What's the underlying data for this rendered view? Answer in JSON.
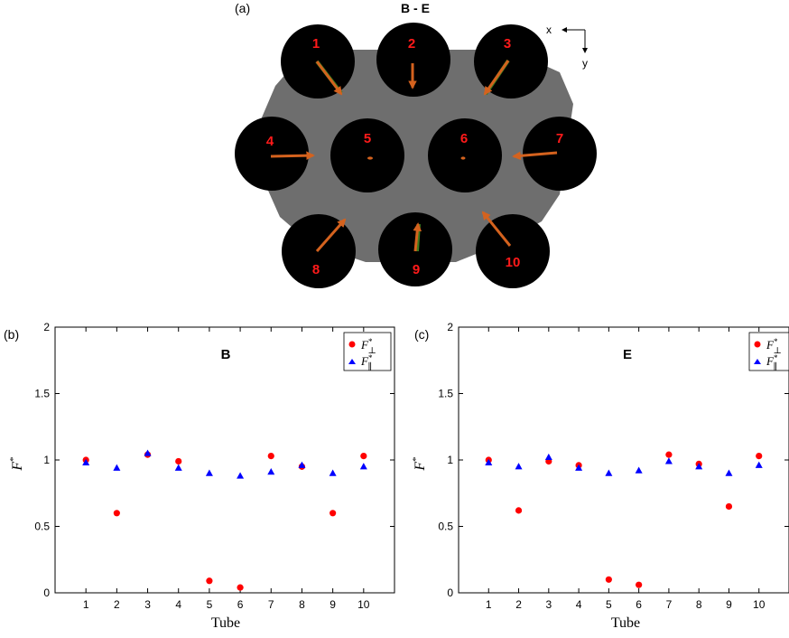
{
  "panel_a": {
    "label": "(a)",
    "title": "B - E",
    "axis_x": "x",
    "axis_y": "y",
    "tubes": [
      "1",
      "2",
      "3",
      "4",
      "5",
      "6",
      "7",
      "8",
      "9",
      "10"
    ],
    "colors": {
      "background": "#6e6e6e",
      "tube": "#000000",
      "number": "#ff1a1a",
      "arrow": "#d4621e",
      "arrow_alt": "#3d7a1e"
    }
  },
  "chart_data": [
    {
      "type": "scatter",
      "panel_label": "(b)",
      "title": "B",
      "xlabel": "Tube",
      "ylabel": "F*",
      "x": [
        1,
        2,
        3,
        4,
        5,
        6,
        7,
        8,
        9,
        10
      ],
      "xticks": [
        "1",
        "2",
        "3",
        "4",
        "5",
        "6",
        "7",
        "8",
        "9",
        "10"
      ],
      "yticks": [
        "0",
        "0.5",
        "1",
        "1.5",
        "2"
      ],
      "xlim": [
        0,
        11
      ],
      "ylim": [
        0,
        2
      ],
      "legend_position": "top-right",
      "series": [
        {
          "name": "F*⊥",
          "marker": "circle",
          "color": "#ff0000",
          "values": [
            1.0,
            0.6,
            1.04,
            0.99,
            0.09,
            0.04,
            1.03,
            0.95,
            0.6,
            1.03
          ]
        },
        {
          "name": "F*∥",
          "marker": "triangle",
          "color": "#0000ff",
          "values": [
            0.98,
            0.94,
            1.05,
            0.94,
            0.9,
            0.88,
            0.91,
            0.96,
            0.9,
            0.95
          ]
        }
      ]
    },
    {
      "type": "scatter",
      "panel_label": "(c)",
      "title": "E",
      "xlabel": "Tube",
      "ylabel": "F*",
      "x": [
        1,
        2,
        3,
        4,
        5,
        6,
        7,
        8,
        9,
        10
      ],
      "xticks": [
        "1",
        "2",
        "3",
        "4",
        "5",
        "6",
        "7",
        "8",
        "9",
        "10"
      ],
      "yticks": [
        "0",
        "0.5",
        "1",
        "1.5",
        "2"
      ],
      "xlim": [
        0,
        11
      ],
      "ylim": [
        0,
        2
      ],
      "legend_position": "top-right",
      "series": [
        {
          "name": "F*⊥",
          "marker": "circle",
          "color": "#ff0000",
          "values": [
            1.0,
            0.62,
            0.99,
            0.96,
            0.1,
            0.06,
            1.04,
            0.97,
            0.65,
            1.03
          ]
        },
        {
          "name": "F*∥",
          "marker": "triangle",
          "color": "#0000ff",
          "values": [
            0.98,
            0.95,
            1.02,
            0.94,
            0.9,
            0.92,
            0.99,
            0.95,
            0.9,
            0.96
          ]
        }
      ]
    }
  ]
}
